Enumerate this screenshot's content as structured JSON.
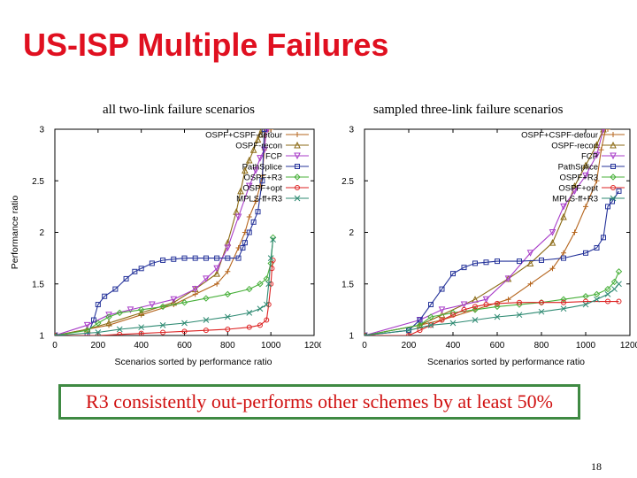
{
  "title": "US-ISP Multiple Failures",
  "callout": "R3 consistently out-performs other schemes by at least 50%",
  "page_number": "18",
  "series_colors": {
    "OSPF+CSPF-detour": "#b5651d",
    "OSPF-recon": "#8b6a14",
    "FCP": "#a83cc8",
    "PathSplice": "#25339a",
    "OSPF+R3": "#48b03a",
    "OSPF+opt": "#dd2222",
    "MPLS-ff+R3": "#2e8a72"
  },
  "series_markers": {
    "OSPF+CSPF-detour": "plus",
    "OSPF-recon": "triangle",
    "FCP": "triangle-down",
    "PathSplice": "square",
    "OSPF+R3": "diamond",
    "OSPF+opt": "circle",
    "MPLS-ff+R3": "cross"
  },
  "chart_data": [
    {
      "type": "line",
      "title": "all two-link failure scenarios",
      "xlabel": "Scenarios sorted by performance ratio",
      "ylabel": "Performance ratio",
      "xlim": [
        0,
        1200
      ],
      "ylim": [
        1,
        3
      ],
      "xticks": [
        "0",
        "200",
        "400",
        "600",
        "800",
        "1000",
        "1200"
      ],
      "yticks": [
        "1",
        "1.5",
        "2",
        "2.5",
        "3"
      ],
      "legend_position": "top-right",
      "series": [
        {
          "name": "OSPF+CSPF-detour",
          "x": [
            0,
            150,
            250,
            400,
            550,
            650,
            750,
            800,
            850,
            880,
            900,
            930,
            950,
            960,
            970,
            975,
            980,
            985,
            990,
            1000
          ],
          "y": [
            1.0,
            1.06,
            1.1,
            1.2,
            1.3,
            1.4,
            1.5,
            1.62,
            1.85,
            2.0,
            2.15,
            2.3,
            2.45,
            2.55,
            2.8,
            3.0,
            3.0,
            3.0,
            3.0,
            3.0
          ]
        },
        {
          "name": "OSPF-recon",
          "x": [
            0,
            150,
            250,
            400,
            550,
            650,
            750,
            800,
            840,
            860,
            880,
            900,
            920,
            940,
            950,
            960
          ],
          "y": [
            1.0,
            1.06,
            1.12,
            1.22,
            1.32,
            1.45,
            1.6,
            1.9,
            2.2,
            2.4,
            2.6,
            2.7,
            2.8,
            2.9,
            2.95,
            3.0
          ]
        },
        {
          "name": "FCP",
          "x": [
            0,
            150,
            250,
            350,
            450,
            550,
            650,
            700,
            750,
            800,
            850,
            900,
            930,
            950,
            970,
            980,
            985
          ],
          "y": [
            1.0,
            1.1,
            1.2,
            1.25,
            1.3,
            1.35,
            1.45,
            1.55,
            1.65,
            1.85,
            2.15,
            2.45,
            2.6,
            2.72,
            2.8,
            3.0,
            3.0
          ]
        },
        {
          "name": "PathSplice",
          "x": [
            0,
            150,
            180,
            200,
            230,
            280,
            330,
            370,
            400,
            450,
            500,
            550,
            600,
            650,
            700,
            750,
            800,
            850,
            870,
            880,
            900,
            920,
            940,
            960,
            970
          ],
          "y": [
            1.0,
            1.0,
            1.15,
            1.3,
            1.38,
            1.45,
            1.55,
            1.62,
            1.65,
            1.7,
            1.73,
            1.74,
            1.75,
            1.75,
            1.75,
            1.75,
            1.75,
            1.75,
            1.85,
            1.9,
            2.0,
            2.1,
            2.2,
            2.5,
            3.0
          ]
        },
        {
          "name": "OSPF+R3",
          "x": [
            0,
            150,
            200,
            250,
            300,
            400,
            500,
            600,
            700,
            800,
            900,
            950,
            980,
            1000,
            1010
          ],
          "y": [
            1.0,
            1.05,
            1.12,
            1.18,
            1.22,
            1.25,
            1.28,
            1.32,
            1.36,
            1.4,
            1.45,
            1.5,
            1.55,
            1.7,
            1.95
          ]
        },
        {
          "name": "OSPF+opt",
          "x": [
            0,
            200,
            300,
            400,
            500,
            600,
            700,
            800,
            900,
            950,
            980,
            990,
            1000,
            1005,
            1010
          ],
          "y": [
            1.0,
            1.0,
            1.01,
            1.02,
            1.03,
            1.04,
            1.05,
            1.06,
            1.08,
            1.1,
            1.15,
            1.3,
            1.5,
            1.65,
            1.73
          ]
        },
        {
          "name": "MPLS-ff+R3",
          "x": [
            0,
            200,
            300,
            400,
            500,
            600,
            700,
            800,
            900,
            950,
            980,
            990,
            1000,
            1010
          ],
          "y": [
            1.0,
            1.03,
            1.06,
            1.08,
            1.1,
            1.12,
            1.15,
            1.18,
            1.22,
            1.26,
            1.3,
            1.5,
            1.75,
            1.93
          ]
        }
      ]
    },
    {
      "type": "line",
      "title": "sampled three-link failure scenarios",
      "xlabel": "Scenarios sorted by performance ratio",
      "ylabel": "",
      "xlim": [
        0,
        1200
      ],
      "ylim": [
        1,
        3
      ],
      "xticks": [
        "0",
        "200",
        "400",
        "600",
        "800",
        "1000",
        "1200"
      ],
      "yticks": [
        "1",
        "1.5",
        "2",
        "2.5",
        "3"
      ],
      "legend_position": "top-right",
      "series": [
        {
          "name": "OSPF+CSPF-detour",
          "x": [
            0,
            250,
            350,
            500,
            650,
            750,
            850,
            900,
            950,
            1000,
            1050,
            1070,
            1090,
            1100
          ],
          "y": [
            1.0,
            1.1,
            1.15,
            1.25,
            1.35,
            1.5,
            1.65,
            1.8,
            2.0,
            2.25,
            2.5,
            2.8,
            3.0,
            3.0
          ]
        },
        {
          "name": "OSPF-recon",
          "x": [
            0,
            250,
            350,
            500,
            650,
            750,
            850,
            900,
            950,
            1000,
            1050,
            1080
          ],
          "y": [
            1.0,
            1.1,
            1.2,
            1.35,
            1.55,
            1.7,
            1.9,
            2.15,
            2.45,
            2.65,
            2.85,
            3.0
          ]
        },
        {
          "name": "FCP",
          "x": [
            0,
            250,
            350,
            450,
            550,
            650,
            750,
            850,
            900,
            950,
            1000,
            1050,
            1080
          ],
          "y": [
            1.0,
            1.15,
            1.25,
            1.3,
            1.35,
            1.55,
            1.8,
            2.0,
            2.25,
            2.4,
            2.55,
            2.75,
            3.0
          ]
        },
        {
          "name": "PathSplice",
          "x": [
            0,
            200,
            250,
            300,
            350,
            400,
            450,
            500,
            550,
            600,
            700,
            800,
            900,
            1000,
            1050,
            1080,
            1100,
            1120,
            1150
          ],
          "y": [
            1.0,
            1.05,
            1.15,
            1.3,
            1.45,
            1.6,
            1.66,
            1.7,
            1.71,
            1.72,
            1.72,
            1.73,
            1.75,
            1.8,
            1.85,
            1.95,
            2.25,
            2.3,
            2.4
          ]
        },
        {
          "name": "OSPF+R3",
          "x": [
            0,
            250,
            300,
            400,
            500,
            600,
            700,
            800,
            900,
            1000,
            1050,
            1100,
            1130,
            1150
          ],
          "y": [
            1.0,
            1.1,
            1.18,
            1.22,
            1.25,
            1.28,
            1.3,
            1.32,
            1.35,
            1.38,
            1.4,
            1.45,
            1.52,
            1.62
          ]
        },
        {
          "name": "OSPF+opt",
          "x": [
            0,
            200,
            250,
            300,
            350,
            400,
            450,
            500,
            550,
            600,
            700,
            800,
            900,
            1000,
            1100,
            1150
          ],
          "y": [
            1.0,
            1.0,
            1.05,
            1.1,
            1.15,
            1.2,
            1.25,
            1.28,
            1.3,
            1.31,
            1.32,
            1.32,
            1.32,
            1.33,
            1.33,
            1.33
          ]
        },
        {
          "name": "MPLS-ff+R3",
          "x": [
            0,
            200,
            300,
            400,
            500,
            600,
            700,
            800,
            900,
            1000,
            1050,
            1100,
            1130,
            1150
          ],
          "y": [
            1.0,
            1.05,
            1.1,
            1.12,
            1.15,
            1.18,
            1.2,
            1.23,
            1.26,
            1.3,
            1.35,
            1.4,
            1.45,
            1.5
          ]
        }
      ]
    }
  ]
}
